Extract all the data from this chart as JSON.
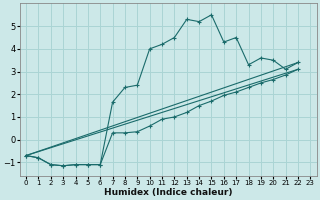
{
  "xlabel": "Humidex (Indice chaleur)",
  "bg_color": "#cce8e8",
  "grid_color": "#aad4d4",
  "line_color": "#1a6b6b",
  "xlim": [
    -0.5,
    23.5
  ],
  "ylim": [
    -1.6,
    6.0
  ],
  "yticks": [
    -1,
    0,
    1,
    2,
    3,
    4,
    5
  ],
  "xticks": [
    0,
    1,
    2,
    3,
    4,
    5,
    6,
    7,
    8,
    9,
    10,
    11,
    12,
    13,
    14,
    15,
    16,
    17,
    18,
    19,
    20,
    21,
    22,
    23
  ],
  "series1_x": [
    0,
    1,
    2,
    3,
    4,
    5,
    6,
    7,
    8,
    9,
    10,
    11,
    12,
    13,
    14,
    15,
    16,
    17,
    18,
    19,
    20,
    21,
    22
  ],
  "series1_y": [
    -0.7,
    -0.8,
    -1.1,
    -1.15,
    -1.1,
    -1.1,
    -1.1,
    1.65,
    2.3,
    2.4,
    4.0,
    4.2,
    4.5,
    5.3,
    5.2,
    5.5,
    4.3,
    4.5,
    3.3,
    3.6,
    3.5,
    3.1,
    3.4
  ],
  "series2_x": [
    0,
    1,
    2,
    3,
    4,
    5,
    6,
    7,
    8,
    9,
    10,
    11,
    12,
    13,
    14,
    15,
    16,
    17,
    18,
    19,
    20,
    21,
    22
  ],
  "series2_y": [
    -0.7,
    -0.8,
    -1.1,
    -1.15,
    -1.1,
    -1.1,
    -1.1,
    0.3,
    0.3,
    0.35,
    0.6,
    0.9,
    1.0,
    1.2,
    1.5,
    1.7,
    1.95,
    2.1,
    2.3,
    2.5,
    2.65,
    2.85,
    3.1
  ],
  "line1_x": [
    0,
    22
  ],
  "line1_y": [
    -0.7,
    3.4
  ],
  "line2_x": [
    0,
    22
  ],
  "line2_y": [
    -0.7,
    3.1
  ]
}
